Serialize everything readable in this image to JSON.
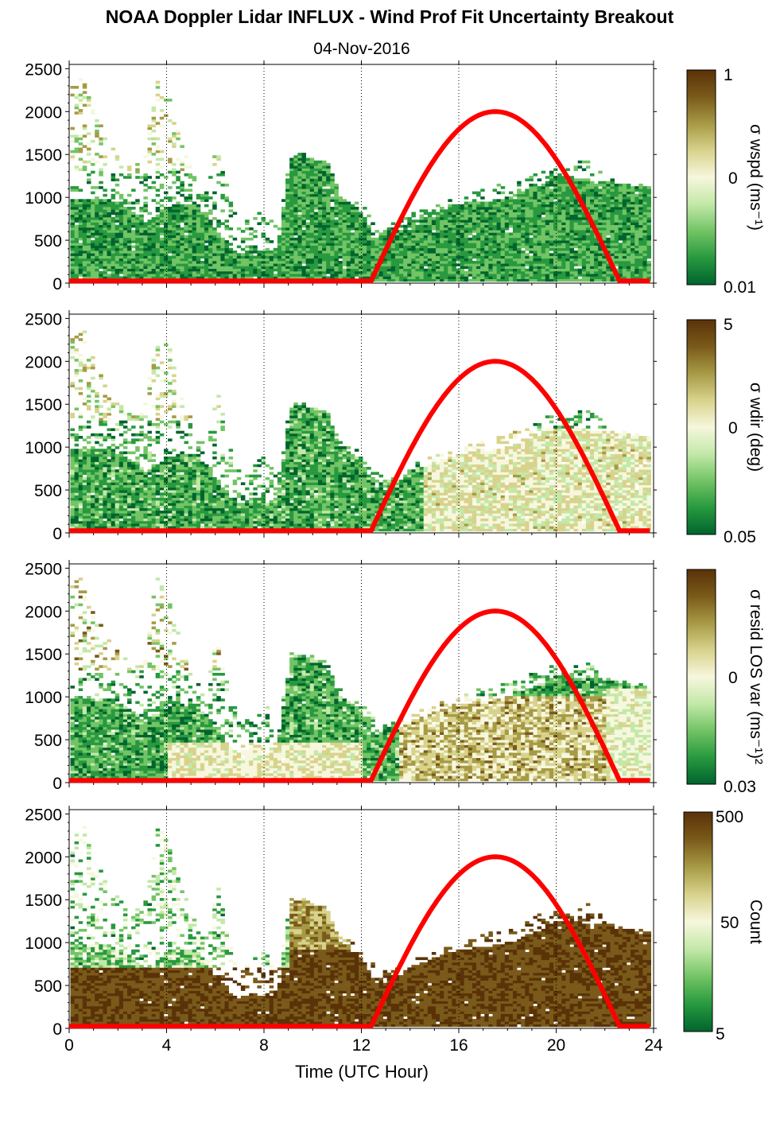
{
  "figure": {
    "title": "NOAA Doppler Lidar INFLUX - Wind Prof Fit Uncertainty Breakout",
    "subtitle": "04-Nov-2016",
    "xlabel": "Time (UTC Hour)"
  },
  "colors": {
    "colormap": [
      "#00642e",
      "#28993f",
      "#72c465",
      "#c3e8a8",
      "#f6f7dd",
      "#d8d28c",
      "#a79a45",
      "#7a5a1a",
      "#5a3208"
    ],
    "overlay_curve": "#ff0000",
    "axis": "#000000",
    "background": "#ffffff"
  },
  "chart_data": [
    {
      "type": "heatmap",
      "name": "wspd",
      "ylim": [
        0,
        2550
      ],
      "xlim": [
        0,
        24
      ],
      "x_ticks": [
        0,
        4,
        8,
        12,
        16,
        20,
        24
      ],
      "x_tick_labels": [
        "",
        "",
        "",
        "",
        "",
        "",
        ""
      ],
      "y_ticks": [
        0,
        500,
        1000,
        1500,
        2000,
        2500
      ],
      "y_tick_labels": [
        "0",
        "500",
        "1000",
        "1500",
        "2000",
        "2500"
      ],
      "vertical_gridlines": [
        4,
        8,
        12,
        16,
        20,
        24
      ],
      "colorbar": {
        "label": "σ wspd (ms⁻¹)",
        "tick_labels": [
          "1",
          "0",
          "0.01"
        ],
        "scale": "log"
      },
      "overlay_curve": {
        "x": [
          0,
          12.4,
          13,
          14,
          15,
          16,
          17,
          17.5,
          18,
          19,
          20,
          21,
          22,
          22.6,
          24
        ],
        "y": [
          25,
          25,
          250,
          880,
          1400,
          1760,
          1960,
          2000,
          1960,
          1760,
          1400,
          880,
          250,
          25,
          25
        ]
      }
    },
    {
      "type": "heatmap",
      "name": "wdir",
      "ylim": [
        0,
        2550
      ],
      "xlim": [
        0,
        24
      ],
      "x_ticks": [
        0,
        4,
        8,
        12,
        16,
        20,
        24
      ],
      "x_tick_labels": [
        "",
        "",
        "",
        "",
        "",
        "",
        ""
      ],
      "y_ticks": [
        0,
        500,
        1000,
        1500,
        2000,
        2500
      ],
      "y_tick_labels": [
        "0",
        "500",
        "1000",
        "1500",
        "2000",
        "2500"
      ],
      "vertical_gridlines": [
        4,
        8,
        12,
        16,
        20,
        24
      ],
      "colorbar": {
        "label": "σ wdir (deg)",
        "tick_labels": [
          "5",
          "0",
          "0.05"
        ],
        "scale": "log"
      },
      "overlay_curve": {
        "x": [
          0,
          12.4,
          13,
          14,
          15,
          16,
          17,
          17.5,
          18,
          19,
          20,
          21,
          22,
          22.6,
          24
        ],
        "y": [
          25,
          25,
          250,
          880,
          1400,
          1760,
          1960,
          2000,
          1960,
          1760,
          1400,
          880,
          250,
          25,
          25
        ]
      }
    },
    {
      "type": "heatmap",
      "name": "resid",
      "ylim": [
        0,
        2550
      ],
      "xlim": [
        0,
        24
      ],
      "x_ticks": [
        0,
        4,
        8,
        12,
        16,
        20,
        24
      ],
      "x_tick_labels": [
        "",
        "",
        "",
        "",
        "",
        "",
        ""
      ],
      "y_ticks": [
        0,
        500,
        1000,
        1500,
        2000,
        2500
      ],
      "y_tick_labels": [
        "0",
        "500",
        "1000",
        "1500",
        "2000",
        "2500"
      ],
      "vertical_gridlines": [
        4,
        8,
        12,
        16,
        20,
        24
      ],
      "colorbar": {
        "label": "σ resid LOS var (ms⁻¹)²",
        "tick_labels": [
          "",
          "0",
          "0.03"
        ],
        "scale": "log"
      },
      "overlay_curve": {
        "x": [
          0,
          12.4,
          13,
          14,
          15,
          16,
          17,
          17.5,
          18,
          19,
          20,
          21,
          22,
          22.6,
          24
        ],
        "y": [
          25,
          25,
          250,
          880,
          1400,
          1760,
          1960,
          2000,
          1960,
          1760,
          1400,
          880,
          250,
          25,
          25
        ]
      }
    },
    {
      "type": "heatmap",
      "name": "count",
      "ylim": [
        0,
        2550
      ],
      "xlim": [
        0,
        24
      ],
      "x_ticks": [
        0,
        4,
        8,
        12,
        16,
        20,
        24
      ],
      "x_tick_labels": [
        "0",
        "4",
        "8",
        "12",
        "16",
        "20",
        "24"
      ],
      "y_ticks": [
        0,
        500,
        1000,
        1500,
        2000,
        2500
      ],
      "y_tick_labels": [
        "0",
        "500",
        "1000",
        "1500",
        "2000",
        "2500"
      ],
      "vertical_gridlines": [
        4,
        8,
        12,
        16,
        20,
        24
      ],
      "colorbar": {
        "label": "Count",
        "tick_labels": [
          "500",
          "50",
          "5"
        ],
        "scale": "log"
      },
      "overlay_curve": {
        "x": [
          0,
          12.4,
          13,
          14,
          15,
          16,
          17,
          17.5,
          18,
          19,
          20,
          21,
          22,
          22.6,
          24
        ],
        "y": [
          25,
          25,
          250,
          880,
          1400,
          1760,
          1960,
          2000,
          1960,
          1760,
          1400,
          880,
          250,
          25,
          25
        ]
      }
    }
  ],
  "data_extent": {
    "x": [
      0.05,
      0.5,
      1.0,
      1.5,
      2.0,
      2.5,
      3.0,
      3.5,
      4.0,
      4.5,
      5.0,
      5.5,
      6.0,
      6.5,
      7.0,
      7.5,
      8.0,
      8.5,
      9.0,
      9.5,
      10.0,
      10.5,
      11.0,
      11.5,
      12.0,
      12.5,
      13.0,
      13.5,
      14.0,
      14.5,
      15.0,
      15.5,
      16.0,
      16.5,
      17.0,
      17.5,
      18.0,
      18.5,
      19.0,
      19.5,
      20.0,
      20.5,
      21.0,
      21.5,
      22.0,
      22.5,
      23.0,
      23.5,
      23.8
    ],
    "dense_top_m": [
      980,
      960,
      950,
      960,
      900,
      820,
      700,
      780,
      860,
      900,
      920,
      800,
      600,
      400,
      330,
      400,
      340,
      420,
      1450,
      1480,
      1420,
      1400,
      1000,
      920,
      800,
      500,
      650,
      600,
      720,
      760,
      820,
      860,
      900,
      920,
      940,
      960,
      1000,
      1050,
      1100,
      1150,
      1250,
      1230,
      1200,
      1180,
      1170,
      1150,
      1130,
      1120,
      1100
    ],
    "sparse_top_m": [
      2300,
      2400,
      1950,
      1700,
      1500,
      1350,
      1400,
      2400,
      2200,
      1650,
      1300,
      1000,
      1700,
      1000,
      700,
      800,
      900,
      600,
      1500,
      1500,
      1450,
      1420,
      1100,
      1000,
      900,
      700,
      700,
      700,
      800,
      850,
      900,
      950,
      1000,
      1050,
      1100,
      1150,
      1150,
      1200,
      1300,
      1350,
      1350,
      1300,
      1450,
      1420,
      1200,
      1180,
      1150,
      1130,
      1100
    ]
  }
}
